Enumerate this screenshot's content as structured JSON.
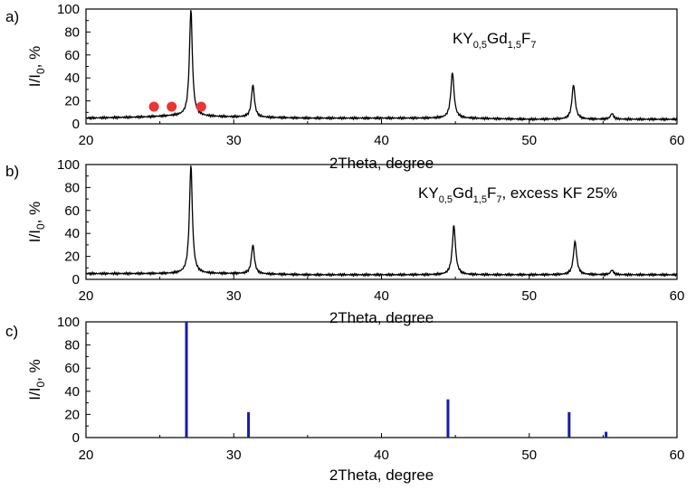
{
  "chart_data": [
    {
      "type": "line",
      "panel_label": "a)",
      "annotation": {
        "prefix": "KY",
        "sub1": "0,5",
        "mid": "Gd",
        "sub2": "1,5",
        "tail": "F",
        "sub3": "7",
        "suffix": ""
      },
      "xlabel": "2Theta, degree",
      "ylabel": {
        "main": "I/I",
        "sub": "0",
        "tail": ", %"
      },
      "xlim": [
        20,
        60
      ],
      "ylim": [
        0,
        100
      ],
      "xticks": [
        "20",
        "30",
        "40",
        "50",
        "60"
      ],
      "yticks": [
        "0",
        "20",
        "40",
        "60",
        "80",
        "100"
      ],
      "grid": false,
      "line_color": "#000000",
      "baseline": [
        [
          20,
          5
        ],
        [
          24,
          6
        ],
        [
          26,
          7
        ],
        [
          30,
          6
        ],
        [
          35,
          5
        ],
        [
          40,
          5
        ],
        [
          45,
          5
        ],
        [
          50,
          4
        ],
        [
          55,
          4
        ],
        [
          60,
          4
        ]
      ],
      "peaks": [
        {
          "x": 27.1,
          "y": 100,
          "w": 0.12
        },
        {
          "x": 31.3,
          "y": 34,
          "w": 0.12
        },
        {
          "x": 44.8,
          "y": 45,
          "w": 0.13
        },
        {
          "x": 53.0,
          "y": 34,
          "w": 0.13
        },
        {
          "x": 55.6,
          "y": 9,
          "w": 0.12
        }
      ],
      "markers": {
        "color": "#ee3333",
        "x": [
          24.6,
          25.8,
          27.8
        ],
        "y": 15
      }
    },
    {
      "type": "line",
      "panel_label": "b)",
      "annotation": {
        "prefix": "KY",
        "sub1": "0,5",
        "mid": "Gd",
        "sub2": "1,5",
        "tail": "F",
        "sub3": "7",
        "suffix": ", excess KF 25%"
      },
      "xlabel": "2Theta, degree",
      "ylabel": {
        "main": "I/I",
        "sub": "0",
        "tail": ", %"
      },
      "xlim": [
        20,
        60
      ],
      "ylim": [
        0,
        100
      ],
      "xticks": [
        "20",
        "30",
        "40",
        "50",
        "60"
      ],
      "yticks": [
        "0",
        "20",
        "40",
        "60",
        "80",
        "100"
      ],
      "grid": false,
      "line_color": "#000000",
      "baseline": [
        [
          20,
          5
        ],
        [
          26,
          5
        ],
        [
          30,
          5
        ],
        [
          35,
          4
        ],
        [
          40,
          4
        ],
        [
          45,
          4
        ],
        [
          50,
          4
        ],
        [
          55,
          4
        ],
        [
          60,
          4
        ]
      ],
      "peaks": [
        {
          "x": 27.1,
          "y": 100,
          "w": 0.12
        },
        {
          "x": 31.3,
          "y": 30,
          "w": 0.12
        },
        {
          "x": 44.9,
          "y": 47,
          "w": 0.13
        },
        {
          "x": 53.1,
          "y": 33,
          "w": 0.13
        },
        {
          "x": 55.6,
          "y": 8,
          "w": 0.12
        }
      ]
    },
    {
      "type": "bar",
      "panel_label": "c)",
      "xlabel": "2Theta, degree",
      "ylabel": {
        "main": "I/I",
        "sub": "0",
        "tail": ", %"
      },
      "xlim": [
        20,
        60
      ],
      "ylim": [
        0,
        100
      ],
      "xticks": [
        "20",
        "30",
        "40",
        "50",
        "60"
      ],
      "yticks": [
        "0",
        "20",
        "40",
        "60",
        "80",
        "100"
      ],
      "grid": false,
      "bar_color": "#1a1aaa",
      "x": [
        26.8,
        31.0,
        44.5,
        52.7,
        55.2
      ],
      "values": [
        100,
        22,
        33,
        22,
        5
      ]
    }
  ]
}
